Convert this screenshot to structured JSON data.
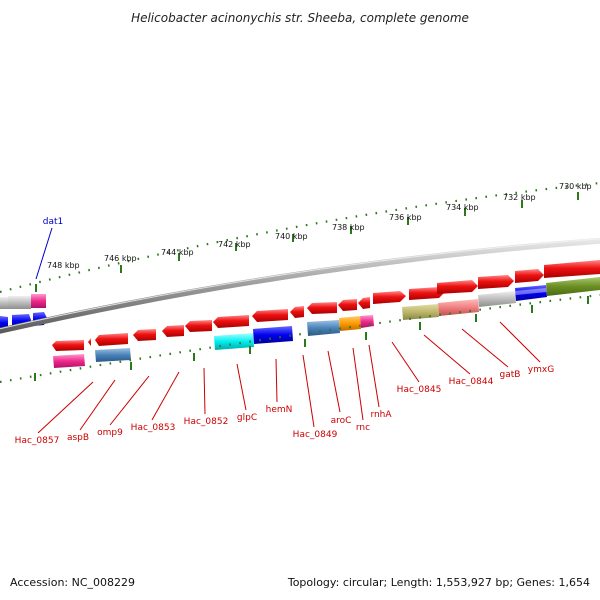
{
  "title": "Helicobacter acinonychis str. Sheeba, complete genome",
  "footer": {
    "accession": "Accession: NC_008229",
    "details": "Topology: circular; Length: 1,553,927 bp; Genes: 1,654"
  },
  "scale_labels": [
    "748 kbp",
    "746 kbp",
    "744 kbp",
    "742 kbp",
    "740 kbp",
    "738 kbp",
    "736 kbp",
    "734 kbp",
    "732 kbp",
    "730 kbp"
  ],
  "top_labels": [
    "dat1"
  ],
  "bottom_labels": [
    "Hac_0857",
    "aspB",
    "omp9",
    "Hac_0853",
    "Hac_0852",
    "glpC",
    "hemN",
    "Hac_0849",
    "aroC",
    "rnc",
    "rnhA",
    "Hac_0845",
    "Hac_0844",
    "gatB",
    "ymxG"
  ],
  "colors": {
    "gene": "#ee1111",
    "backbone": "#888888",
    "tick": "#2a7a1a",
    "label_red": "#cc0000",
    "label_blue": "#0000cc"
  }
}
